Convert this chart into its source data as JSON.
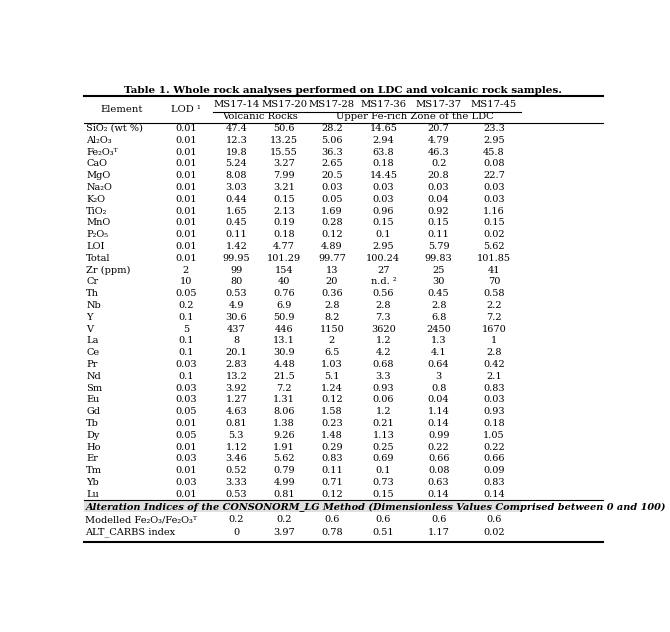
{
  "title": "Table 1. Whole rock analyses performed on LDC and volcanic rock samples.",
  "columns": [
    "Element",
    "LOD ¹",
    "MS17-14",
    "MS17-20",
    "MS17-28",
    "MS17-36",
    "MS17-37",
    "MS17-45"
  ],
  "subheader1": "Volcanic Rocks",
  "subheader2": "Upper Fe-rich Zone of the LDC",
  "rows": [
    [
      "SiO₂ (wt %)",
      "0.01",
      "47.4",
      "50.6",
      "28.2",
      "14.65",
      "20.7",
      "23.3"
    ],
    [
      "Al₂O₃",
      "0.01",
      "12.3",
      "13.25",
      "5.06",
      "2.94",
      "4.79",
      "2.95"
    ],
    [
      "Fe₂O₃ᵀ",
      "0.01",
      "19.8",
      "15.55",
      "36.3",
      "63.8",
      "46.3",
      "45.8"
    ],
    [
      "CaO",
      "0.01",
      "5.24",
      "3.27",
      "2.65",
      "0.18",
      "0.2",
      "0.08"
    ],
    [
      "MgO",
      "0.01",
      "8.08",
      "7.99",
      "20.5",
      "14.45",
      "20.8",
      "22.7"
    ],
    [
      "Na₂O",
      "0.01",
      "3.03",
      "3.21",
      "0.03",
      "0.03",
      "0.03",
      "0.03"
    ],
    [
      "K₂O",
      "0.01",
      "0.44",
      "0.15",
      "0.05",
      "0.03",
      "0.04",
      "0.03"
    ],
    [
      "TiO₂",
      "0.01",
      "1.65",
      "2.13",
      "1.69",
      "0.96",
      "0.92",
      "1.16"
    ],
    [
      "MnO",
      "0.01",
      "0.45",
      "0.19",
      "0.28",
      "0.15",
      "0.15",
      "0.15"
    ],
    [
      "P₂O₅",
      "0.01",
      "0.11",
      "0.18",
      "0.12",
      "0.1",
      "0.11",
      "0.02"
    ],
    [
      "LOI",
      "0.01",
      "1.42",
      "4.77",
      "4.89",
      "2.95",
      "5.79",
      "5.62"
    ],
    [
      "Total",
      "0.01",
      "99.95",
      "101.29",
      "99.77",
      "100.24",
      "99.83",
      "101.85"
    ],
    [
      "Zr (ppm)",
      "2",
      "99",
      "154",
      "13",
      "27",
      "25",
      "41"
    ],
    [
      "Cr",
      "10",
      "80",
      "40",
      "20",
      "n.d. ²",
      "30",
      "70"
    ],
    [
      "Th",
      "0.05",
      "0.53",
      "0.76",
      "0.36",
      "0.56",
      "0.45",
      "0.58"
    ],
    [
      "Nb",
      "0.2",
      "4.9",
      "6.9",
      "2.8",
      "2.8",
      "2.8",
      "2.2"
    ],
    [
      "Y",
      "0.1",
      "30.6",
      "50.9",
      "8.2",
      "7.3",
      "6.8",
      "7.2"
    ],
    [
      "V",
      "5",
      "437",
      "446",
      "1150",
      "3620",
      "2450",
      "1670"
    ],
    [
      "La",
      "0.1",
      "8",
      "13.1",
      "2",
      "1.2",
      "1.3",
      "1"
    ],
    [
      "Ce",
      "0.1",
      "20.1",
      "30.9",
      "6.5",
      "4.2",
      "4.1",
      "2.8"
    ],
    [
      "Pr",
      "0.03",
      "2.83",
      "4.48",
      "1.03",
      "0.68",
      "0.64",
      "0.42"
    ],
    [
      "Nd",
      "0.1",
      "13.2",
      "21.5",
      "5.1",
      "3.3",
      "3",
      "2.1"
    ],
    [
      "Sm",
      "0.03",
      "3.92",
      "7.2",
      "1.24",
      "0.93",
      "0.8",
      "0.83"
    ],
    [
      "Eu",
      "0.03",
      "1.27",
      "1.31",
      "0.12",
      "0.06",
      "0.04",
      "0.03"
    ],
    [
      "Gd",
      "0.05",
      "4.63",
      "8.06",
      "1.58",
      "1.2",
      "1.14",
      "0.93"
    ],
    [
      "Tb",
      "0.01",
      "0.81",
      "1.38",
      "0.23",
      "0.21",
      "0.14",
      "0.18"
    ],
    [
      "Dy",
      "0.05",
      "5.3",
      "9.26",
      "1.48",
      "1.13",
      "0.99",
      "1.05"
    ],
    [
      "Ho",
      "0.01",
      "1.12",
      "1.91",
      "0.29",
      "0.25",
      "0.22",
      "0.22"
    ],
    [
      "Er",
      "0.03",
      "3.46",
      "5.62",
      "0.83",
      "0.69",
      "0.66",
      "0.66"
    ],
    [
      "Tm",
      "0.01",
      "0.52",
      "0.79",
      "0.11",
      "0.1",
      "0.08",
      "0.09"
    ],
    [
      "Yb",
      "0.03",
      "3.33",
      "4.99",
      "0.71",
      "0.73",
      "0.63",
      "0.83"
    ],
    [
      "Lu",
      "0.01",
      "0.53",
      "0.81",
      "0.12",
      "0.15",
      "0.14",
      "0.14"
    ]
  ],
  "footer_header": "Alteration Indices of the CONSONORM_LG Method (Dimensionless Values Comprised between 0 and 100)",
  "footer_rows": [
    [
      "Modelled Fe₂O₃/Fe₂O₃ᵀ",
      "0.2",
      "0.2",
      "0.6",
      "0.6",
      "0.6",
      "0.6"
    ],
    [
      "ALT_CARBS index",
      "0",
      "3.97",
      "0.78",
      "0.51",
      "1.17",
      "0.02"
    ]
  ]
}
